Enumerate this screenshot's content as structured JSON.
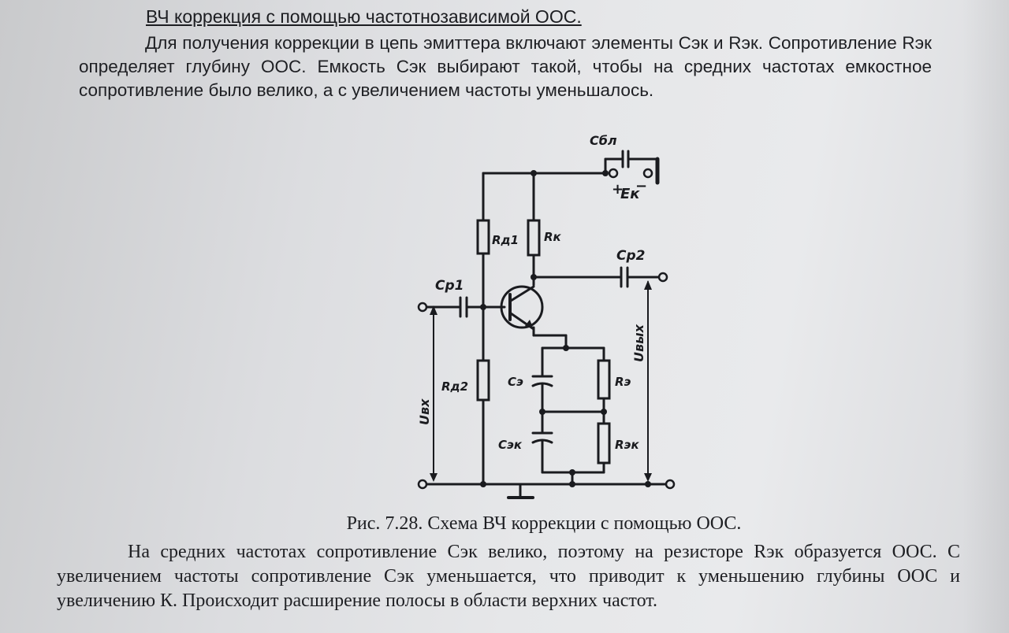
{
  "heading": "ВЧ коррекция с помощью частотнозависимой ООС.",
  "paragraph1": "Для получения коррекции в цепь эмиттера включают элементы Сэк и Rэк. Сопротивление Rэк определяет глубину ООС. Емкость Сэк выбирают такой, чтобы на средних частотах емкостное сопротивление было велико, а с увеличением частоты уменьшалось.",
  "figure": {
    "labels": {
      "c_bl": "Сбл",
      "ek": "Eк",
      "ek_plus": "+",
      "ek_minus": "−",
      "rd1": "Rд1",
      "rk": "Rк",
      "cp2": "Cр2",
      "cp1": "Cр1",
      "u_vyh": "Uвых",
      "u_vh": "Uвх",
      "rd2": "Rд2",
      "ce": "Cэ",
      "re": "Rэ",
      "cek": "Cэк",
      "rek": "Rэк"
    },
    "caption": "Рис. 7.28. Схема ВЧ коррекции с помощью ООС."
  },
  "paragraph2": "На средних частотах сопротивление Сэк велико, поэтому на резисторе Rэк образуется ООС. С увеличением частоты сопротивление Сэк уменьшается, что приводит к уменьшению глубины ООС и увеличению К. Происходит расширение полосы в области верхних частот."
}
